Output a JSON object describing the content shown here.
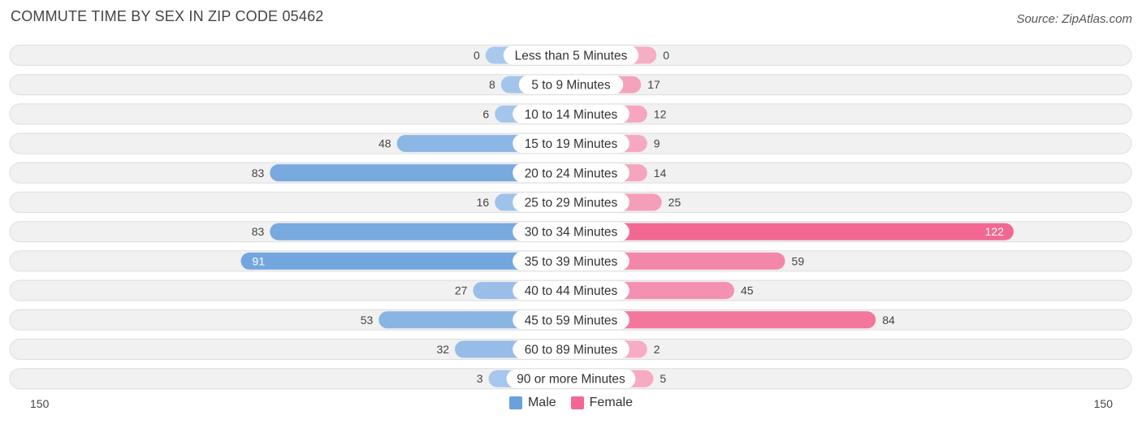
{
  "title": "COMMUTE TIME BY SEX IN ZIP CODE 05462",
  "source": "Source: ZipAtlas.com",
  "colors": {
    "male_light": "#a9c8ec",
    "male_dark": "#6aa0dc",
    "female_light": "#f6aec5",
    "female_dark": "#f26893",
    "row_bg": "#f1f1f1",
    "row_border": "#dedede"
  },
  "chart_data": {
    "type": "bar",
    "orientation": "horizontal-diverging",
    "categories": [
      "Less than 5 Minutes",
      "5 to 9 Minutes",
      "10 to 14 Minutes",
      "15 to 19 Minutes",
      "20 to 24 Minutes",
      "25 to 29 Minutes",
      "30 to 34 Minutes",
      "35 to 39 Minutes",
      "40 to 44 Minutes",
      "45 to 59 Minutes",
      "60 to 89 Minutes",
      "90 or more Minutes"
    ],
    "series": [
      {
        "name": "Male",
        "values": [
          0,
          8,
          6,
          48,
          83,
          16,
          83,
          91,
          27,
          53,
          32,
          3
        ]
      },
      {
        "name": "Female",
        "values": [
          0,
          17,
          12,
          9,
          14,
          25,
          122,
          59,
          45,
          84,
          2,
          5
        ]
      }
    ],
    "axis": {
      "left_label": "150",
      "right_label": "150",
      "max": 150
    },
    "legend_position": "bottom-center"
  }
}
